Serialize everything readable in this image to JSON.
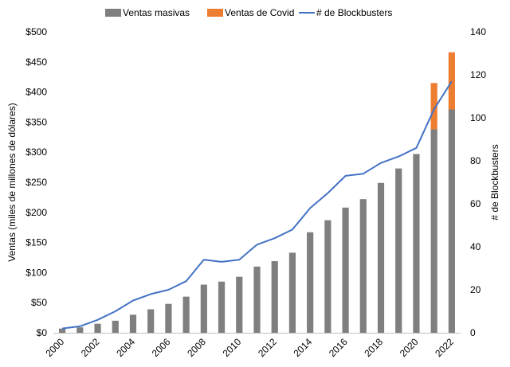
{
  "chart_data": {
    "type": "bar",
    "stacked": true,
    "title": "",
    "x": [
      "2000",
      "2001",
      "2002",
      "2003",
      "2004",
      "2005",
      "2006",
      "2007",
      "2008",
      "2009",
      "2010",
      "2011",
      "2012",
      "2013",
      "2014",
      "2015",
      "2016",
      "2017",
      "2018",
      "2019",
      "2020",
      "2021",
      "2022"
    ],
    "x_tick_labels": [
      "2000",
      "2002",
      "2004",
      "2006",
      "2008",
      "2010",
      "2012",
      "2014",
      "2016",
      "2018",
      "2020",
      "2022"
    ],
    "xlim": [
      2000,
      2022
    ],
    "ylabel": "Ventas (miles de millones de dólares)",
    "ylim": [
      0,
      500
    ],
    "y_ticks": [
      "$0",
      "$50",
      "$100",
      "$150",
      "$200",
      "$250",
      "$300",
      "$350",
      "$400",
      "$450",
      "$500"
    ],
    "y2label": "# de Blockbusters",
    "y2lim": [
      0,
      140
    ],
    "y2_ticks": [
      "0",
      "20",
      "40",
      "60",
      "80",
      "100",
      "120",
      "140"
    ],
    "legend_position": "top",
    "grid": false,
    "series": [
      {
        "name": "Ventas masivas",
        "type": "bar",
        "axis": "left",
        "color": "#7f7f7f",
        "values": [
          7,
          9,
          15,
          20,
          30,
          39,
          48,
          60,
          80,
          85,
          93,
          110,
          119,
          133,
          167,
          187,
          208,
          222,
          249,
          273,
          297,
          338,
          371
        ]
      },
      {
        "name": "Ventas de Covid",
        "type": "bar",
        "axis": "left",
        "color": "#ed7d31",
        "stack_on": "Ventas masivas",
        "values": [
          0,
          0,
          0,
          0,
          0,
          0,
          0,
          0,
          0,
          0,
          0,
          0,
          0,
          0,
          0,
          0,
          0,
          0,
          0,
          0,
          0,
          77,
          95
        ]
      },
      {
        "name": "# de Blockbusters",
        "type": "line",
        "axis": "right",
        "color": "#4472c4",
        "values": [
          2,
          3,
          6,
          10,
          15,
          18,
          20,
          24,
          34,
          33,
          34,
          41,
          44,
          48,
          58,
          65,
          73,
          74,
          79,
          82,
          86,
          104,
          117
        ]
      }
    ]
  }
}
